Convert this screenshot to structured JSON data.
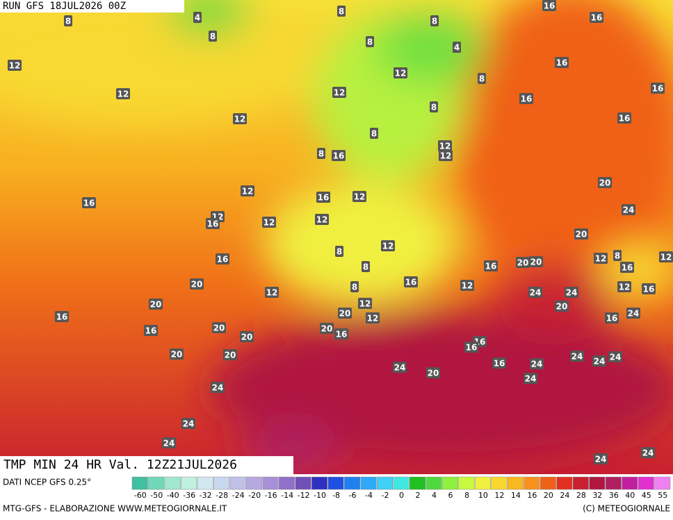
{
  "header": {
    "run": "RUN GFS 18JUL2026 00Z",
    "valid": "TMP MIN 24 HR Val. 12Z21JUL2026"
  },
  "map": {
    "labels": [
      8,
      4,
      8,
      16,
      16,
      8,
      8,
      8,
      4,
      12,
      16,
      12,
      8,
      16,
      12,
      12,
      16,
      8,
      12,
      16,
      8,
      8,
      16,
      12,
      12,
      20,
      12,
      16,
      12,
      16,
      24,
      12,
      16,
      12,
      12,
      20,
      8,
      12,
      12,
      8,
      12,
      16,
      16,
      20,
      20,
      8,
      16,
      16,
      20,
      12,
      8,
      12,
      12,
      16,
      24,
      24,
      20,
      12,
      20,
      16,
      20,
      12,
      16,
      24,
      20,
      16,
      20,
      16,
      20,
      16,
      16,
      20,
      20,
      24,
      24,
      24,
      24,
      16,
      24,
      20,
      24,
      24,
      24,
      24,
      24,
      24
    ]
  },
  "legend": {
    "source": "DATI NCEP GFS 0.25°",
    "ticks": [
      -60,
      -50,
      -40,
      -36,
      -32,
      -28,
      -24,
      -20,
      -16,
      -14,
      -12,
      -10,
      -8,
      -6,
      -4,
      -2,
      0,
      2,
      4,
      6,
      8,
      10,
      12,
      14,
      16,
      20,
      24,
      28,
      32,
      36,
      40,
      45,
      55
    ],
    "colors": [
      "#40c0a0",
      "#70d8b8",
      "#a0e8d0",
      "#c0f0e0",
      "#d0e8f0",
      "#c8d8f0",
      "#c0c0e8",
      "#b8a8e0",
      "#a890d8",
      "#9070c8",
      "#7050b8",
      "#3030c0",
      "#2050e0",
      "#2080f0",
      "#30a8f8",
      "#40d0f8",
      "#40e8e0",
      "#20c020",
      "#50d840",
      "#90f040",
      "#c8f840",
      "#f0f040",
      "#f8d830",
      "#f8b820",
      "#f89020",
      "#f06018",
      "#e03020",
      "#c82030",
      "#b01840",
      "#b02060",
      "#c020a0",
      "#e030d0",
      "#f080f0"
    ]
  },
  "footer": {
    "left": "MTG-GFS - ELABORAZIONE WWW.METEOGIORNALE.IT",
    "right": "(C) METEOGIORNALE"
  }
}
